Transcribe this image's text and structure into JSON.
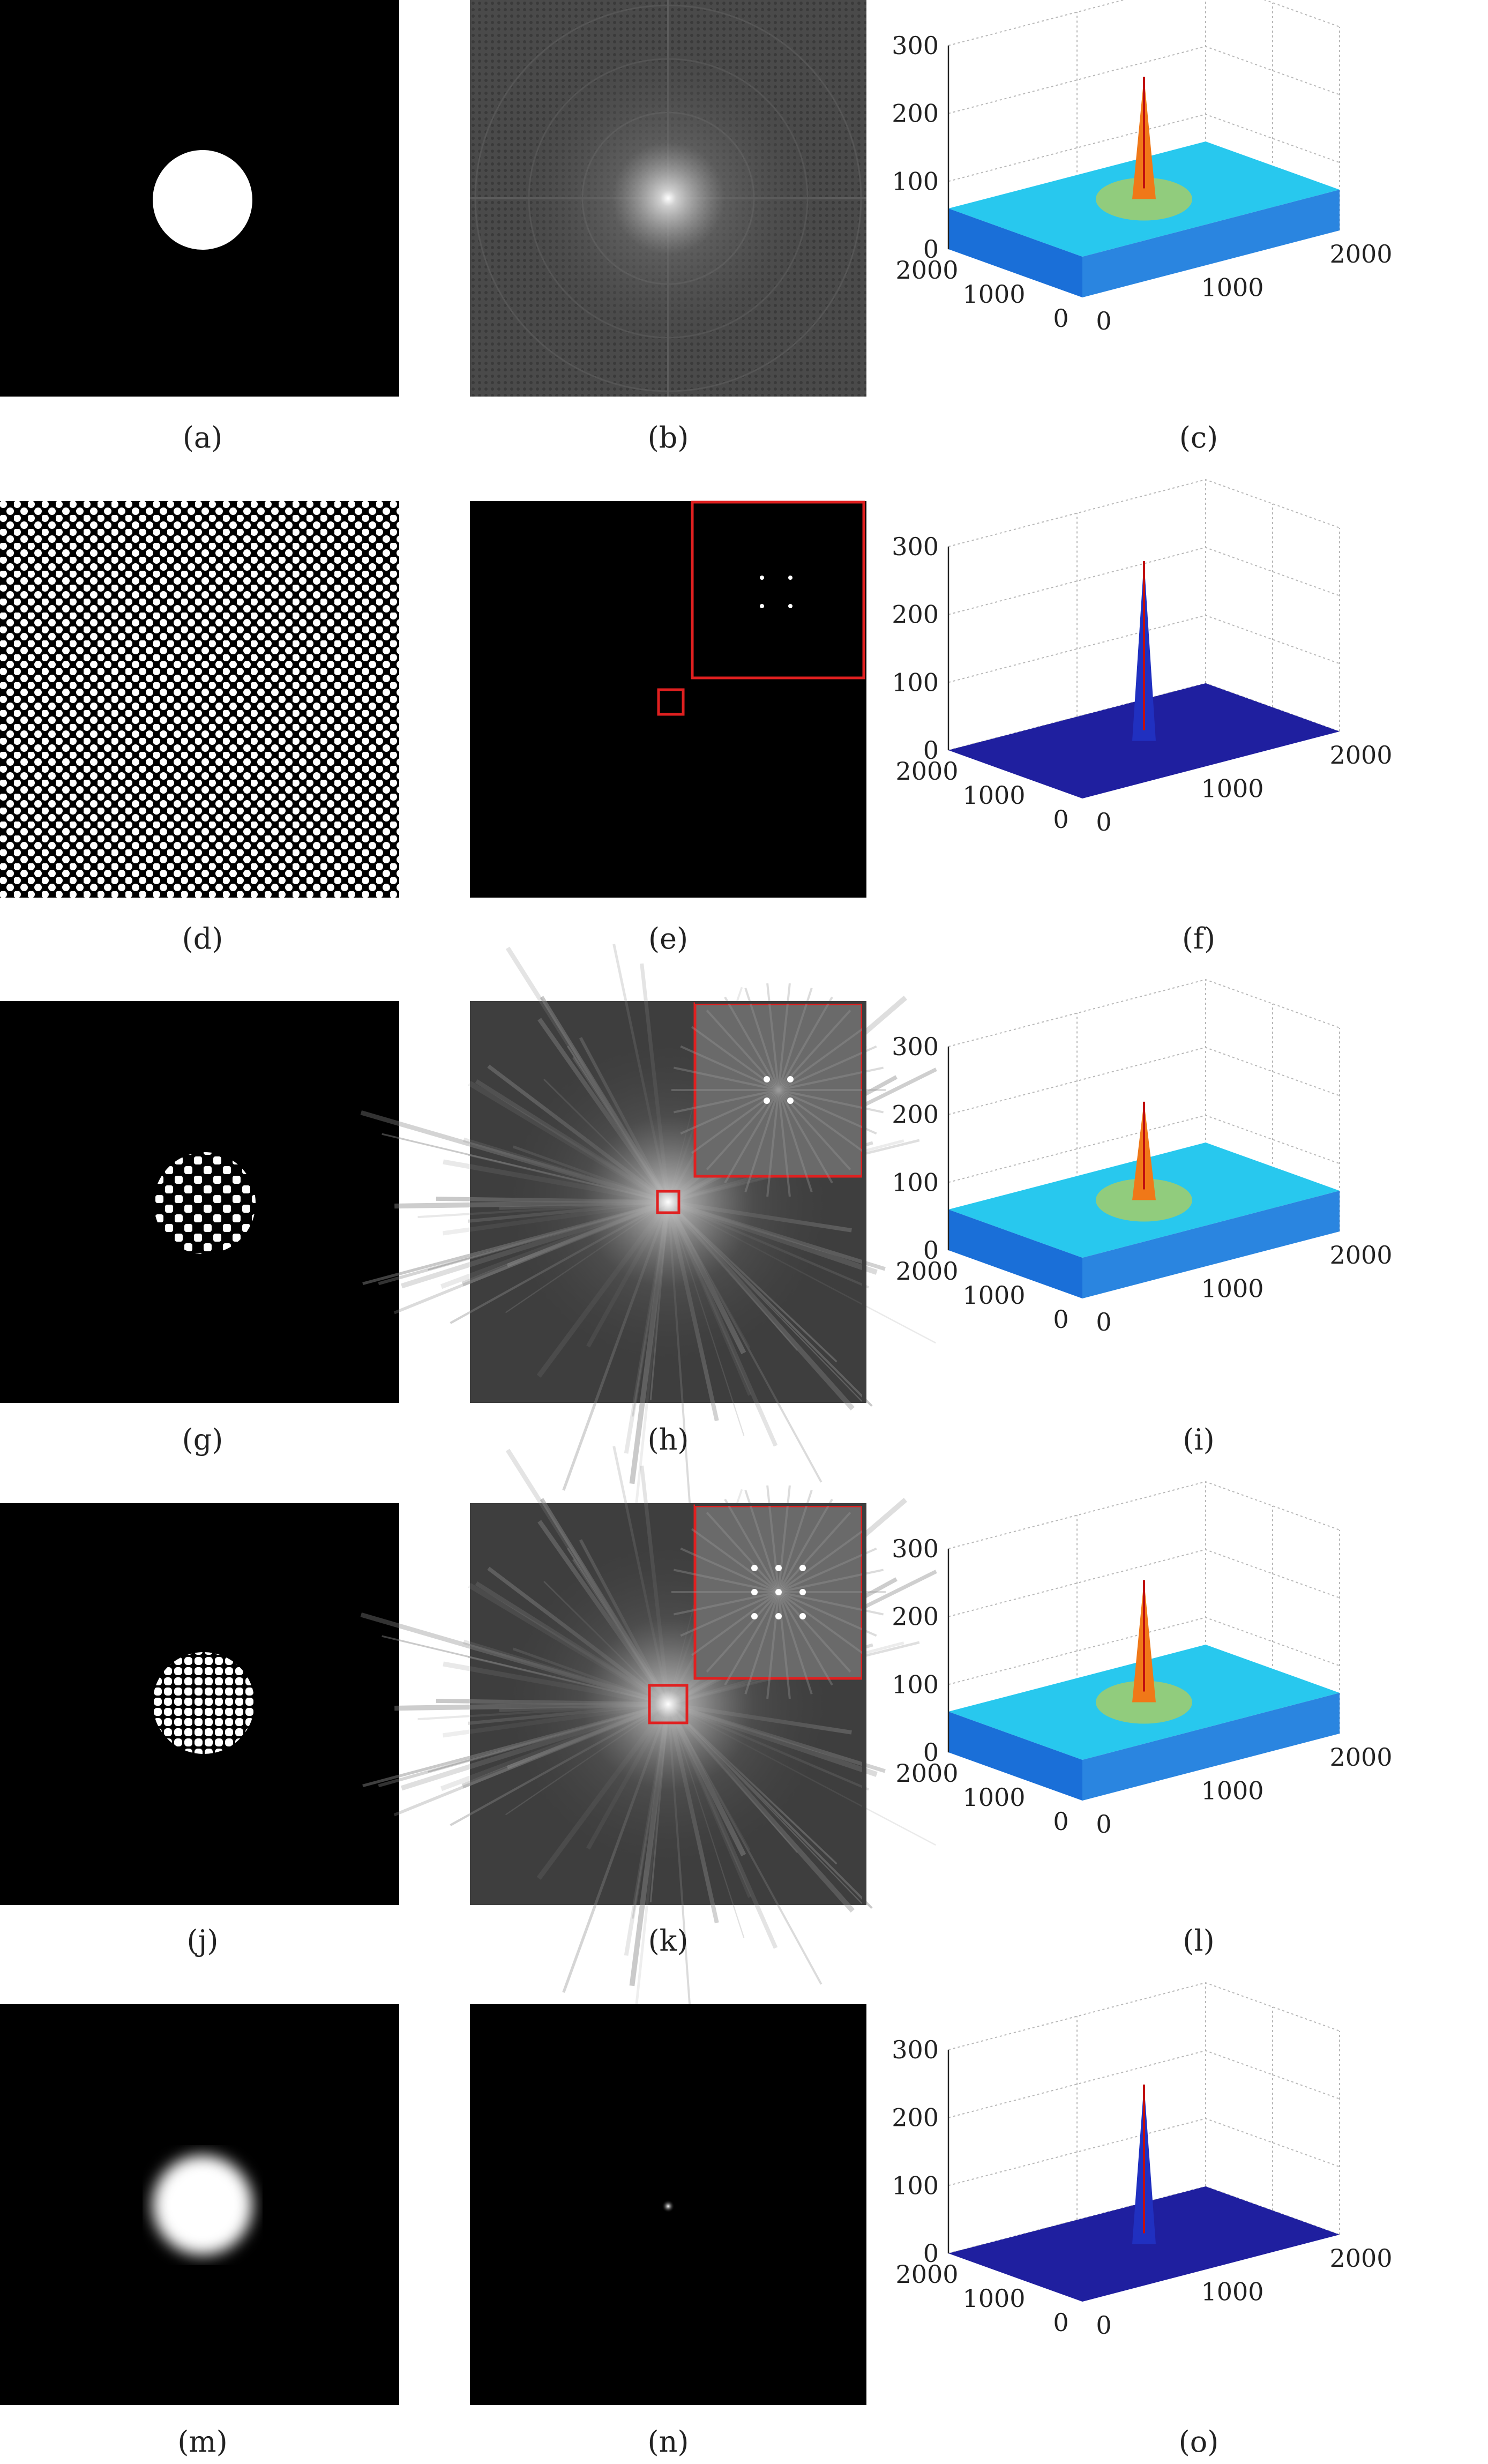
{
  "figure": {
    "captions": [
      "(a)",
      "(b)",
      "(c)",
      "(d)",
      "(e)",
      "(f)",
      "(g)",
      "(h)",
      "(i)",
      "(j)",
      "(k)",
      "(l)",
      "(m)",
      "(n)",
      "(o)"
    ]
  },
  "chart_data": [
    {
      "type": "surface",
      "panel": "c",
      "z_ticks": [
        "300",
        "200",
        "100",
        "0"
      ],
      "x_ticks": [
        "2000",
        "1000",
        "0"
      ],
      "y_ticks": [
        "0",
        "1000",
        "2000"
      ],
      "zlim": [
        0,
        300
      ],
      "xlim": [
        0,
        2000
      ],
      "ylim": [
        0,
        2000
      ],
      "peak": 240,
      "floor": 60,
      "grid": true
    },
    {
      "type": "surface",
      "panel": "f",
      "z_ticks": [
        "300",
        "200",
        "100",
        "0"
      ],
      "x_ticks": [
        "2000",
        "1000",
        "0"
      ],
      "y_ticks": [
        "0",
        "1000",
        "2000"
      ],
      "zlim": [
        0,
        300
      ],
      "xlim": [
        0,
        2000
      ],
      "ylim": [
        0,
        2000
      ],
      "peak": 265,
      "floor": 0,
      "grid": true
    },
    {
      "type": "surface",
      "panel": "i",
      "z_ticks": [
        "300",
        "200",
        "100",
        "0"
      ],
      "x_ticks": [
        "2000",
        "1000",
        "0"
      ],
      "y_ticks": [
        "0",
        "1000",
        "2000"
      ],
      "zlim": [
        0,
        300
      ],
      "xlim": [
        0,
        2000
      ],
      "ylim": [
        0,
        2000
      ],
      "peak": 205,
      "floor": 60,
      "grid": true
    },
    {
      "type": "surface",
      "panel": "l",
      "z_ticks": [
        "300",
        "200",
        "100",
        "0"
      ],
      "x_ticks": [
        "2000",
        "1000",
        "0"
      ],
      "y_ticks": [
        "0",
        "1000",
        "2000"
      ],
      "zlim": [
        0,
        300
      ],
      "xlim": [
        0,
        2000
      ],
      "ylim": [
        0,
        2000
      ],
      "peak": 240,
      "floor": 60,
      "grid": true
    },
    {
      "type": "surface",
      "panel": "o",
      "z_ticks": [
        "300",
        "200",
        "100",
        "0"
      ],
      "x_ticks": [
        "2000",
        "1000",
        "0"
      ],
      "y_ticks": [
        "0",
        "1000",
        "2000"
      ],
      "zlim": [
        0,
        300
      ],
      "xlim": [
        0,
        2000
      ],
      "ylim": [
        0,
        2000
      ],
      "peak": 235,
      "floor": 0,
      "grid": true
    }
  ]
}
